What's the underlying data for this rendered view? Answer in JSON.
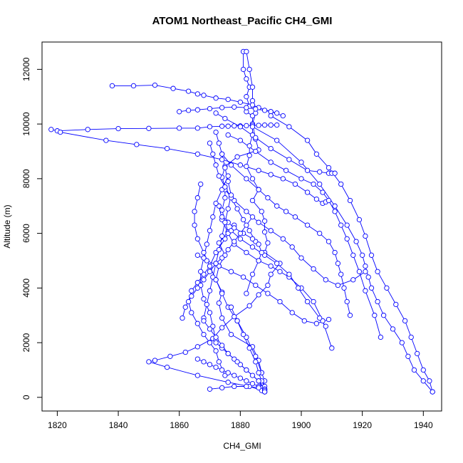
{
  "chart_data": {
    "type": "scatter",
    "title": "ATOM1 Northeast_Pacific CH4_GMI",
    "xlabel": "CH4_GMI",
    "ylabel": "Altitude (m)",
    "xlim": [
      1815,
      1946
    ],
    "ylim": [
      -500,
      13000
    ],
    "x_ticks": [
      "1820",
      "1840",
      "1860",
      "1880",
      "1900",
      "1920",
      "1940"
    ],
    "y_ticks": [
      "0",
      "2000",
      "4000",
      "6000",
      "8000",
      "10000",
      "12000"
    ],
    "grid": false,
    "legend": "none",
    "colors": {
      "series": "#0000ff",
      "axis": "#000000"
    },
    "series": [
      {
        "mode": "lines+markers",
        "marker": "open-circle",
        "profiles": [
          {
            "x": [
              1881,
              1881,
              1882,
              1883,
              1882,
              1883,
              1882,
              1884,
              1884,
              1885,
              1886,
              1879,
              1875,
              1874,
              1875,
              1875,
              1874,
              1875,
              1876,
              1873,
              1875,
              1873,
              1872,
              1874,
              1873,
              1874,
              1877,
              1884,
              1886,
              1887,
              1888,
              1887,
              1888
            ],
            "y": [
              12650,
              12000,
              11650,
              11350,
              11000,
              10650,
              10450,
              10300,
              10000,
              9450,
              9050,
              8800,
              8450,
              8050,
              7700,
              7300,
              6850,
              6450,
              6050,
              5650,
              5200,
              4800,
              4300,
              3850,
              3450,
              2900,
              2300,
              1850,
              1350,
              900,
              600,
              350,
              200
            ]
          },
          {
            "x": [
              1882,
              1883,
              1884,
              1884,
              1885,
              1884,
              1884,
              1883,
              1883,
              1882,
              1884,
              1886,
              1884,
              1887,
              1888,
              1888,
              1889,
              1888,
              1893,
              1890,
              1889,
              1886,
              1883,
              1878,
              1874,
              1871,
              1866,
              1862,
              1857,
              1852,
              1850,
              1856,
              1866,
              1876,
              1883,
              1887,
              1888
            ],
            "y": [
              12650,
              12000,
              11350,
              10850,
              10400,
              10000,
              9600,
              9200,
              8850,
              8450,
              8000,
              7600,
              7200,
              6800,
              6450,
              6050,
              5650,
              5300,
              4900,
              4500,
              4100,
              3750,
              3350,
              2950,
              2550,
              2150,
              1850,
              1650,
              1500,
              1350,
              1300,
              1100,
              800,
              550,
              400,
              250,
              200
            ]
          },
          {
            "x": [
              1818,
              1820,
              1830,
              1840,
              1850,
              1860,
              1866,
              1870,
              1874,
              1876,
              1878,
              1880,
              1882,
              1884,
              1886,
              1888,
              1890,
              1892
            ],
            "y": [
              9800,
              9750,
              9800,
              9830,
              9840,
              9850,
              9850,
              9900,
              9920,
              9920,
              9930,
              9930,
              9940,
              9950,
              9950,
              9960,
              9960,
              9960
            ]
          },
          {
            "x": [
              1821,
              1836,
              1846,
              1856,
              1866,
              1874,
              1880,
              1886,
              1890,
              1894,
              1898,
              1902,
              1905,
              1907,
              1908
            ],
            "y": [
              9700,
              9400,
              9250,
              9100,
              8900,
              8700,
              8500,
              8300,
              8150,
              8000,
              7800,
              7500,
              7250,
              7100,
              7150
            ]
          },
          {
            "x": [
              1838,
              1845,
              1852,
              1858,
              1863,
              1866,
              1868,
              1872,
              1876,
              1880,
              1884,
              1886,
              1890,
              1894
            ],
            "y": [
              11400,
              11400,
              11420,
              11300,
              11200,
              11100,
              11050,
              10950,
              10900,
              10800,
              10700,
              10600,
              10450,
              10300
            ]
          },
          {
            "x": [
              1860,
              1863,
              1866,
              1870,
              1874,
              1878,
              1882,
              1885,
              1888,
              1890,
              1892
            ],
            "y": [
              10450,
              10500,
              10520,
              10560,
              10600,
              10620,
              10600,
              10550,
              10500,
              10450,
              10400
            ]
          },
          {
            "x": [
              1890,
              1896,
              1902,
              1905,
              1909,
              1913,
              1916,
              1919,
              1921,
              1923,
              1925,
              1928,
              1931,
              1934,
              1936,
              1938,
              1940,
              1942,
              1943
            ],
            "y": [
              10300,
              9900,
              9400,
              8900,
              8400,
              7800,
              7200,
              6500,
              5900,
              5200,
              4600,
              4000,
              3400,
              2800,
              2200,
              1600,
              1000,
              600,
              200
            ]
          },
          {
            "x": [
              1884,
              1892,
              1900,
              1906,
              1911,
              1915,
              1918,
              1920,
              1921,
              1922,
              1923,
              1925,
              1927,
              1930,
              1933,
              1935,
              1937,
              1940,
              1943
            ],
            "y": [
              9900,
              9400,
              8600,
              7800,
              7000,
              6300,
              5700,
              5200,
              4800,
              4400,
              4000,
              3500,
              3000,
              2500,
              2000,
              1500,
              1000,
              600,
              200
            ]
          },
          {
            "x": [
              1872,
              1875,
              1880,
              1885,
              1890,
              1896,
              1902,
              1906,
              1909,
              1910,
              1911
            ],
            "y": [
              10400,
              10200,
              9900,
              9500,
              9100,
              8700,
              8300,
              8250,
              8200,
              8200,
              8200
            ]
          },
          {
            "x": [
              1876,
              1880,
              1885,
              1890,
              1895,
              1900,
              1904,
              1907,
              1909,
              1911,
              1913,
              1915,
              1917,
              1919,
              1921,
              1924,
              1926
            ],
            "y": [
              9600,
              9400,
              9000,
              8600,
              8300,
              8000,
              7800,
              7500,
              7200,
              6800,
              6300,
              5800,
              5200,
              4600,
              3900,
              3000,
              2200
            ]
          },
          {
            "x": [
              1874,
              1877,
              1882,
              1886,
              1889,
              1892,
              1895,
              1898,
              1902,
              1906,
              1909,
              1911,
              1912,
              1913,
              1914,
              1915,
              1916
            ],
            "y": [
              8900,
              8500,
              8000,
              7600,
              7300,
              7000,
              6800,
              6600,
              6300,
              6000,
              5700,
              5300,
              4900,
              4500,
              4000,
              3500,
              3000
            ]
          },
          {
            "x": [
              1873,
              1874,
              1876,
              1878,
              1882,
              1886,
              1890,
              1893,
              1896,
              1900,
              1904,
              1907,
              1910
            ],
            "y": [
              7000,
              6500,
              6000,
              5600,
              5300,
              5000,
              4800,
              4600,
              4400,
              4000,
              3500,
              2800,
              1800
            ]
          },
          {
            "x": [
              1877,
              1880,
              1884,
              1888,
              1892,
              1896,
              1899,
              1902,
              1906,
              1908
            ],
            "y": [
              6100,
              5800,
              5500,
              5200,
              4900,
              4500,
              4000,
              3500,
              2900,
              2600
            ]
          },
          {
            "x": [
              1875,
              1878,
              1882,
              1886,
              1890,
              1894,
              1897,
              1900,
              1904,
              1908,
              1912,
              1917,
              1921
            ],
            "y": [
              7600,
              7200,
              6800,
              6400,
              6100,
              5800,
              5500,
              5100,
              4700,
              4300,
              4100,
              4300,
              4600
            ]
          },
          {
            "x": [
              1866,
              1869,
              1873,
              1877,
              1881,
              1885,
              1889,
              1893,
              1897,
              1901,
              1905,
              1909
            ],
            "y": [
              5200,
              5000,
              4800,
              4600,
              4400,
              4100,
              3800,
              3500,
              3100,
              2800,
              2700,
              2850
            ]
          },
          {
            "x": [
              1878,
              1875,
              1872,
              1870,
              1868,
              1866,
              1864,
              1863,
              1864,
              1866,
              1868,
              1870,
              1872,
              1873,
              1875
            ],
            "y": [
              6300,
              5800,
              5300,
              4800,
              4500,
              4200,
              3900,
              3500,
              3100,
              2700,
              2300,
              2000,
              1700,
              1300,
              800
            ]
          },
          {
            "x": [
              1876,
              1874,
              1872,
              1871,
              1870,
              1869,
              1868,
              1867,
              1867,
              1868,
              1870,
              1871,
              1872
            ],
            "y": [
              8100,
              7600,
              7100,
              6600,
              6100,
              5600,
              5100,
              4600,
              4100,
              3600,
              3100,
              2600,
              2100
            ]
          },
          {
            "x": [
              1870,
              1871,
              1872,
              1873,
              1875,
              1877,
              1879,
              1881,
              1883,
              1885
            ],
            "y": [
              9300,
              8900,
              8500,
              8100,
              7700,
              7300,
              6900,
              6500,
              6100,
              5700
            ]
          },
          {
            "x": [
              1874,
              1876,
              1878,
              1881,
              1884,
              1886,
              1887,
              1886,
              1884,
              1882
            ],
            "y": [
              6600,
              6400,
              6200,
              6000,
              5800,
              5600,
              5300,
              5000,
              4500,
              3800
            ]
          },
          {
            "x": [
              1872,
              1873,
              1874,
              1875,
              1876,
              1877,
              1876,
              1875,
              1874,
              1873,
              1872,
              1871,
              1870,
              1869,
              1868
            ],
            "y": [
              9700,
              9300,
              8900,
              8400,
              7900,
              7400,
              6900,
              6400,
              5900,
              5400,
              4900,
              4400,
              3900,
              3400,
              2900
            ]
          },
          {
            "x": [
              1867,
              1866,
              1865,
              1865,
              1866,
              1868,
              1870,
              1872,
              1874,
              1876,
              1879,
              1882,
              1885,
              1887
            ],
            "y": [
              7800,
              7300,
              6800,
              6300,
              5800,
              5300,
              4800,
              4300,
              3800,
              3300,
              2800,
              2200,
              1500,
              900
            ]
          },
          {
            "x": [
              1861,
              1862,
              1864,
              1866,
              1868,
              1870,
              1872,
              1874,
              1876,
              1878,
              1880,
              1882,
              1884
            ],
            "y": [
              2900,
              3300,
              3700,
              4000,
              4300,
              4600,
              4900,
              5100,
              5400,
              5700,
              6000,
              6300,
              6600
            ]
          },
          {
            "x": [
              1877,
              1879,
              1881,
              1883,
              1885,
              1886,
              1887,
              1888,
              1888
            ],
            "y": [
              3300,
              2800,
              2300,
              1800,
              1300,
              900,
              600,
              400,
              200
            ]
          },
          {
            "x": [
              1866,
              1868,
              1870,
              1872,
              1874,
              1876,
              1878,
              1880,
              1882,
              1884,
              1886,
              1888
            ],
            "y": [
              1400,
              1300,
              1200,
              1100,
              1000,
              900,
              800,
              700,
              600,
              500,
              400,
              300
            ]
          },
          {
            "x": [
              1872,
              1874,
              1876,
              1878,
              1880,
              1882,
              1884,
              1886,
              1888
            ],
            "y": [
              2000,
              1800,
              1600,
              1400,
              1200,
              1000,
              800,
              600,
              300
            ]
          },
          {
            "x": [
              1868,
              1870,
              1872,
              1874,
              1876,
              1879,
              1882,
              1886,
              1888
            ],
            "y": [
              2800,
              2500,
              2200,
              1900,
              1600,
              1300,
              1000,
              600,
              250
            ]
          },
          {
            "x": [
              1870,
              1874,
              1878,
              1882,
              1886,
              1888
            ],
            "y": [
              300,
              350,
              400,
              400,
              350,
              200
            ]
          }
        ]
      }
    ]
  }
}
